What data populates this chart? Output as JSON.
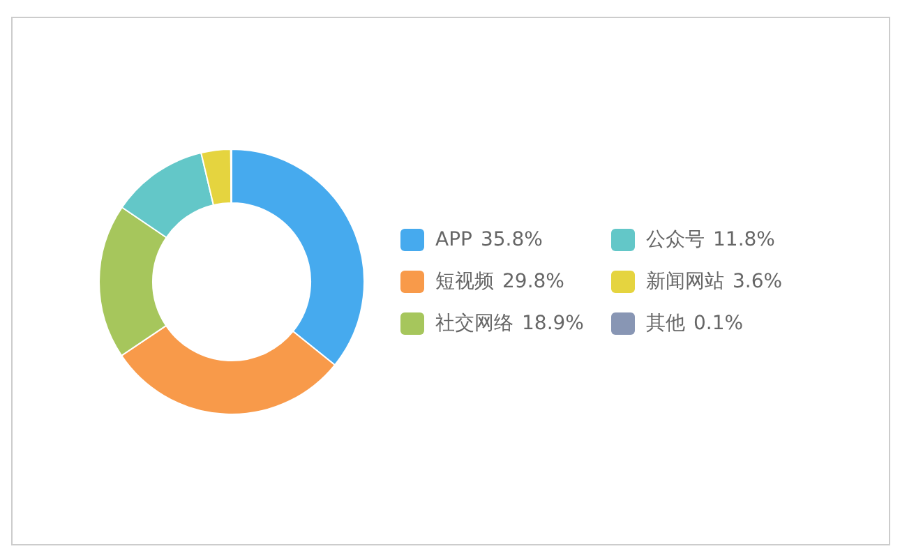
{
  "chart_data": {
    "type": "donut",
    "categories": [
      "APP",
      "短视频",
      "社交网络",
      "公众号",
      "新闻网站",
      "其他"
    ],
    "values": [
      35.8,
      29.8,
      18.9,
      11.8,
      3.6,
      0.1
    ],
    "colors": [
      "#46aaee",
      "#f89a4a",
      "#a6c65c",
      "#63c7c8",
      "#e5d43f",
      "#8896b4"
    ],
    "value_labels": [
      "35.8%",
      "29.8%",
      "18.9%",
      "11.8%",
      "3.6%",
      "0.1%"
    ],
    "legend": "right"
  }
}
